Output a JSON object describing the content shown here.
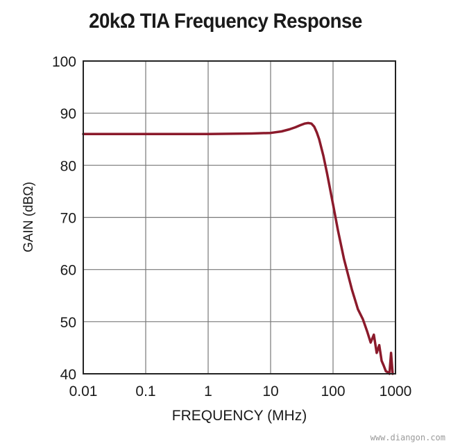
{
  "chart_data": {
    "type": "line",
    "title": "20kΩ TIA Frequency Response",
    "xlabel": "FREQUENCY (MHz)",
    "ylabel": "GAIN (dBΩ)",
    "x_scale": "log",
    "xlim": [
      0.01,
      1000
    ],
    "ylim": [
      40,
      100
    ],
    "x_ticks": [
      "0.01",
      "0.1",
      "1",
      "10",
      "100",
      "1000"
    ],
    "y_ticks": [
      "40",
      "50",
      "60",
      "70",
      "80",
      "90",
      "100"
    ],
    "grid": true,
    "legend": "none",
    "colors": {
      "series": "#8b1a2b",
      "grid": "#777777",
      "axis": "#222222"
    },
    "series": [
      {
        "x": [
          0.01,
          0.1,
          1,
          5,
          10,
          15,
          20,
          25,
          30,
          35,
          40,
          45,
          50,
          55,
          60,
          70,
          80,
          100,
          120,
          150,
          200,
          250,
          300,
          350,
          400,
          450,
          500,
          550,
          600,
          650,
          700,
          750,
          800,
          850,
          900
        ],
        "y": [
          86,
          86,
          86,
          86.1,
          86.2,
          86.5,
          86.9,
          87.3,
          87.7,
          88.0,
          88.1,
          88.0,
          87.4,
          86.3,
          85.0,
          81.8,
          78.5,
          72.5,
          67.5,
          62.0,
          56.2,
          52.4,
          50.5,
          48.2,
          46.0,
          47.5,
          44.0,
          45.5,
          42.5,
          41.5,
          40.5,
          40.3,
          40.0,
          44.0,
          40.0
        ]
      }
    ]
  },
  "watermark": "www.diangon.com"
}
